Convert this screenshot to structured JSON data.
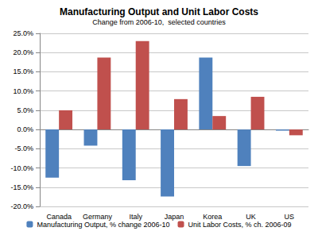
{
  "chart_data": {
    "type": "bar",
    "title": "Manufacturing Output and Unit Labor Costs",
    "subtitle": "Change from 2006-10,  selected countries",
    "categories": [
      "Canada",
      "Germany",
      "Italy",
      "Japan",
      "Korea",
      "UK",
      "US"
    ],
    "series": [
      {
        "name": "Manufacturing Output, % change 2006-10",
        "color": "#4f81bd",
        "values": [
          -12.5,
          -4.2,
          -13.2,
          -17.4,
          18.7,
          -9.5,
          -0.3
        ]
      },
      {
        "name": "Unit Labor Costs, % ch. 2006-09",
        "color": "#c0504d",
        "values": [
          5.0,
          18.7,
          23.0,
          7.9,
          3.5,
          8.5,
          -1.5
        ]
      }
    ],
    "ylim": [
      -20,
      25
    ],
    "yticks": [
      {
        "value": -20,
        "label": "-20.0%"
      },
      {
        "value": -15,
        "label": "-15.0%"
      },
      {
        "value": -10,
        "label": "-10.0%"
      },
      {
        "value": -5,
        "label": "-5.0%"
      },
      {
        "value": 0,
        "label": "0.0%"
      },
      {
        "value": 5,
        "label": "5.0%"
      },
      {
        "value": 10,
        "label": "10.0%"
      },
      {
        "value": 15,
        "label": "15.0%"
      },
      {
        "value": 20,
        "label": "20.0%"
      },
      {
        "value": 25,
        "label": "25.0%"
      }
    ],
    "grid": true,
    "legend": "bottom"
  }
}
